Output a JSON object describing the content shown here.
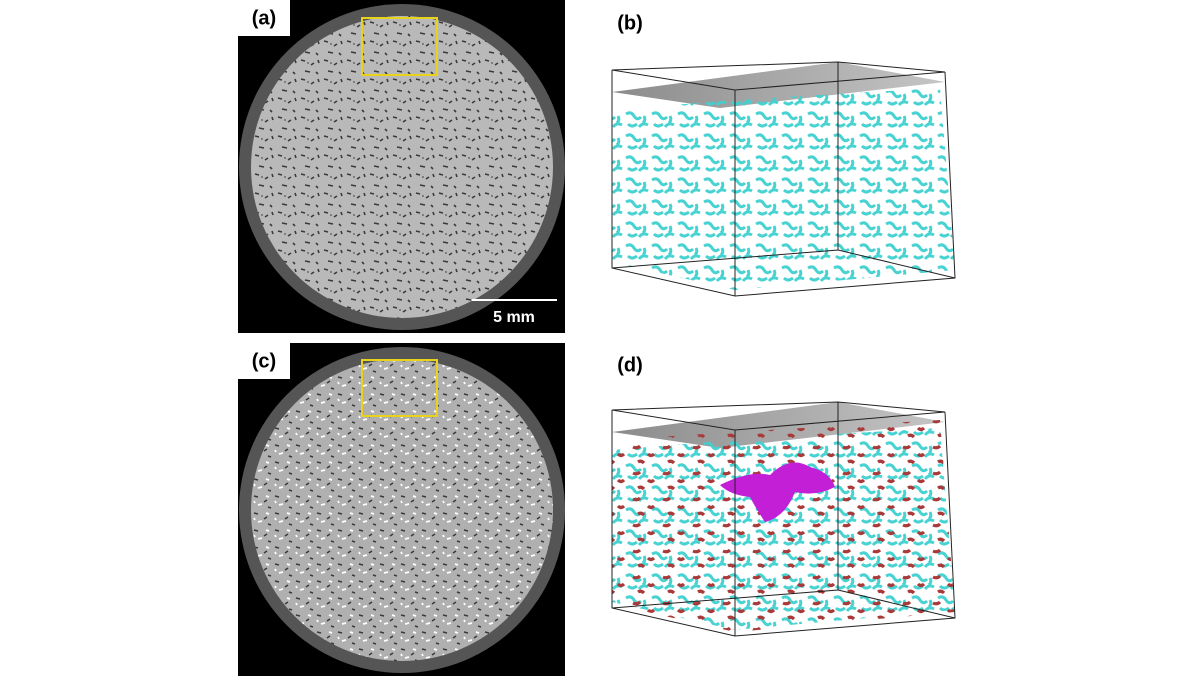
{
  "panels": [
    {
      "label": "(a)",
      "scale_bar": "5 mm"
    },
    {
      "label": "(b)"
    },
    {
      "label": "(c)"
    },
    {
      "label": "(d)"
    }
  ]
}
